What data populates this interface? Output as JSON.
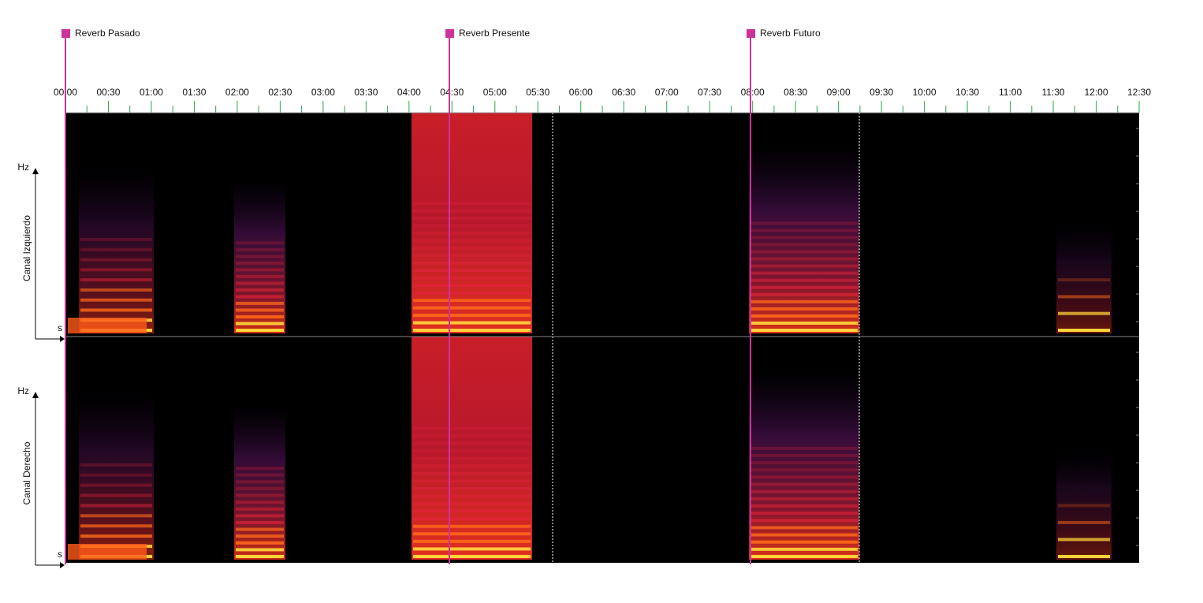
{
  "markers": [
    {
      "label": "Reverb Pasado"
    },
    {
      "label": "Reverb Presente"
    },
    {
      "label": "Reverb Futuro"
    }
  ],
  "timeline": {
    "ticks": [
      "00:00",
      "00:30",
      "01:00",
      "01:30",
      "02:00",
      "02:30",
      "03:00",
      "03:30",
      "04:00",
      "04:30",
      "05:00",
      "05:30",
      "06:00",
      "06:30",
      "07:00",
      "07:30",
      "08:00",
      "08:30",
      "09:00",
      "09:30",
      "10:00",
      "10:30",
      "11:00",
      "11:30",
      "12:00",
      "12:30"
    ]
  },
  "channels": [
    {
      "label": "Canal Izquierdo",
      "y_axis": "Hz",
      "x_axis": "s"
    },
    {
      "label": "Canal Derecho",
      "y_axis": "Hz",
      "x_axis": "s"
    }
  ]
}
